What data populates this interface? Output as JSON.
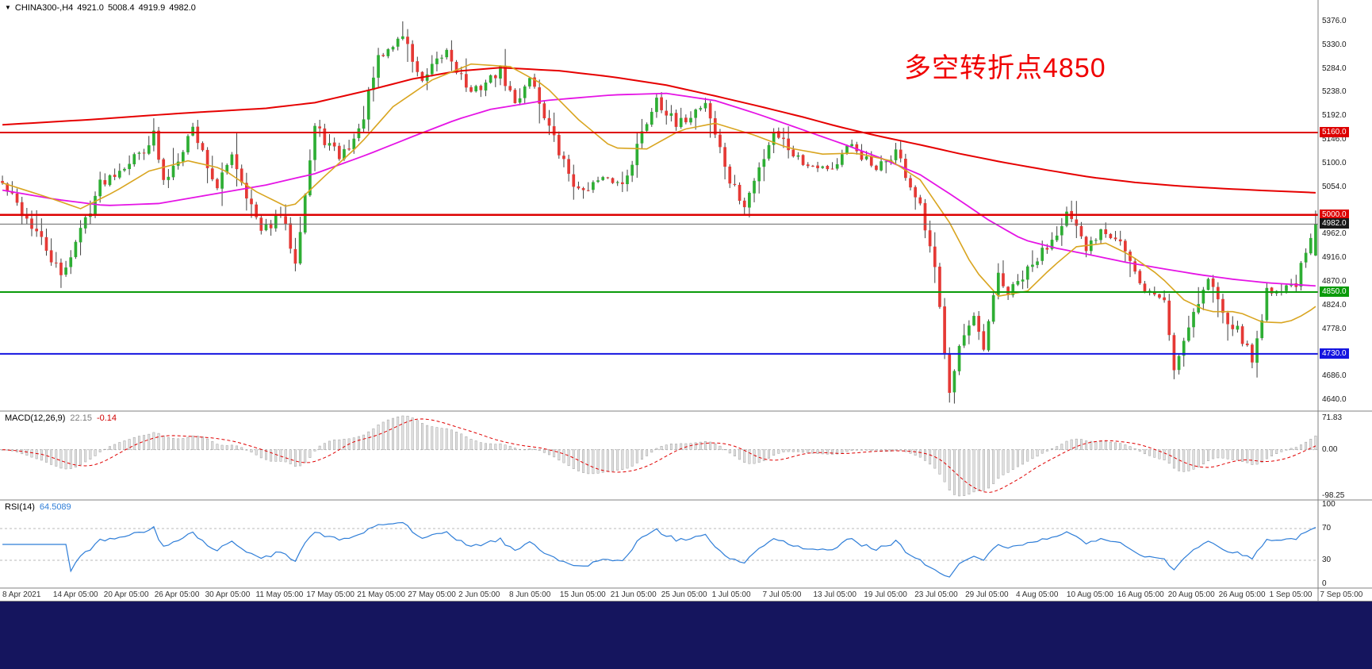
{
  "window": {
    "background": "#ffffff",
    "taskbar_color": "#15155e"
  },
  "header": {
    "symbol_period": "CHINA300-,H4",
    "open": "4921.0",
    "high": "5008.4",
    "low": "4919.9",
    "close": "4982.0"
  },
  "annotation": {
    "text": "多空转折点4850",
    "color": "#f00000"
  },
  "price_axis": {
    "top_price": 5402,
    "bottom_price": 4628,
    "labels": [
      "5376.0",
      "5330.0",
      "5284.0",
      "5238.0",
      "5192.0",
      "5146.0",
      "5100.0",
      "5054.0",
      "4962.0",
      "4916.0",
      "4870.0",
      "4824.0",
      "4778.0",
      "4686.0",
      "4640.0"
    ],
    "values": [
      5376,
      5330,
      5284,
      5238,
      5192,
      5146,
      5100,
      5054,
      4962,
      4916,
      4870,
      4824,
      4778,
      4686,
      4640
    ]
  },
  "levels": [
    {
      "label": "5160.0",
      "value": 5160,
      "color": "#dd0000",
      "width": 2
    },
    {
      "label": "5000.0",
      "value": 5000,
      "color": "#dd0000",
      "width": 2.5
    },
    {
      "label": "4850.0",
      "value": 4850,
      "color": "#0a9b0a",
      "width": 2
    },
    {
      "label": "4730.0",
      "value": 4730,
      "color": "#1515e0",
      "width": 2
    }
  ],
  "current_price": {
    "label": "4982.0",
    "value": 4982,
    "badge_bg": "#1a1a1a",
    "line_color": "#666666"
  },
  "chart_data": {
    "type": "candlestick",
    "symbol": "CHINA300-",
    "timeframe": "H4",
    "n_candles": 270,
    "seed": 42,
    "up_color": "#2eae34",
    "down_color": "#e53935",
    "wick_color": "#404040",
    "close_path": [
      [
        0,
        5060
      ],
      [
        7,
        4965
      ],
      [
        12,
        4880
      ],
      [
        20,
        5060
      ],
      [
        28,
        5120
      ],
      [
        31,
        5155
      ],
      [
        33,
        5060
      ],
      [
        39,
        5170
      ],
      [
        44,
        5050
      ],
      [
        47,
        5120
      ],
      [
        53,
        4965
      ],
      [
        57,
        5000
      ],
      [
        60,
        4915
      ],
      [
        64,
        5170
      ],
      [
        69,
        5110
      ],
      [
        73,
        5160
      ],
      [
        77,
        5300
      ],
      [
        82,
        5350
      ],
      [
        86,
        5255
      ],
      [
        91,
        5320
      ],
      [
        96,
        5235
      ],
      [
        102,
        5280
      ],
      [
        105,
        5215
      ],
      [
        108,
        5270
      ],
      [
        114,
        5120
      ],
      [
        118,
        5045
      ],
      [
        123,
        5070
      ],
      [
        127,
        5060
      ],
      [
        134,
        5230
      ],
      [
        138,
        5170
      ],
      [
        144,
        5220
      ],
      [
        149,
        5065
      ],
      [
        152,
        5015
      ],
      [
        158,
        5165
      ],
      [
        164,
        5100
      ],
      [
        170,
        5090
      ],
      [
        174,
        5135
      ],
      [
        179,
        5085
      ],
      [
        183,
        5125
      ],
      [
        188,
        5010
      ],
      [
        191,
        4890
      ],
      [
        194,
        4665
      ],
      [
        196,
        4745
      ],
      [
        199,
        4795
      ],
      [
        201,
        4735
      ],
      [
        204,
        4885
      ],
      [
        206,
        4845
      ],
      [
        211,
        4900
      ],
      [
        215,
        4955
      ],
      [
        218,
        5005
      ],
      [
        222,
        4930
      ],
      [
        225,
        4975
      ],
      [
        229,
        4950
      ],
      [
        233,
        4860
      ],
      [
        238,
        4835
      ],
      [
        240,
        4700
      ],
      [
        243,
        4790
      ],
      [
        247,
        4875
      ],
      [
        251,
        4800
      ],
      [
        254,
        4760
      ],
      [
        256,
        4715
      ],
      [
        259,
        4850
      ],
      [
        262,
        4855
      ],
      [
        265,
        4870
      ],
      [
        267,
        4920
      ],
      [
        269,
        4982
      ]
    ],
    "spikes": [
      {
        "i": 12,
        "low": 4858
      },
      {
        "i": 82,
        "high": 5376
      },
      {
        "i": 194,
        "low": 4655
      },
      {
        "i": 218,
        "high": 5016
      },
      {
        "i": 240,
        "low": 4686
      },
      {
        "i": 256,
        "low": 4702
      }
    ],
    "last_candle": {
      "open": 4921.0,
      "high": 5008.4,
      "low": 4919.9,
      "close": 4982.0
    },
    "ma_lines": [
      {
        "name": "ma-long-red",
        "color": "#e60000",
        "width": 2,
        "points": [
          [
            0,
            5175
          ],
          [
            18,
            5185
          ],
          [
            36,
            5197
          ],
          [
            54,
            5207
          ],
          [
            64,
            5218
          ],
          [
            75,
            5242
          ],
          [
            84,
            5264
          ],
          [
            93,
            5279
          ],
          [
            102,
            5286
          ],
          [
            114,
            5280
          ],
          [
            125,
            5268
          ],
          [
            136,
            5252
          ],
          [
            146,
            5231
          ],
          [
            155,
            5211
          ],
          [
            164,
            5190
          ],
          [
            171,
            5172
          ],
          [
            179,
            5154
          ],
          [
            188,
            5136
          ],
          [
            196,
            5119
          ],
          [
            205,
            5102
          ],
          [
            214,
            5087
          ],
          [
            223,
            5073
          ],
          [
            232,
            5063
          ],
          [
            241,
            5056
          ],
          [
            250,
            5051
          ],
          [
            259,
            5047
          ],
          [
            269,
            5043
          ]
        ]
      },
      {
        "name": "ma-mid-magenta",
        "color": "#e514e5",
        "width": 1.8,
        "points": [
          [
            0,
            5048
          ],
          [
            11,
            5030
          ],
          [
            21,
            5018
          ],
          [
            32,
            5022
          ],
          [
            43,
            5040
          ],
          [
            54,
            5058
          ],
          [
            64,
            5080
          ],
          [
            75,
            5118
          ],
          [
            84,
            5152
          ],
          [
            93,
            5185
          ],
          [
            100,
            5205
          ],
          [
            111,
            5222
          ],
          [
            125,
            5233
          ],
          [
            136,
            5236
          ],
          [
            146,
            5222
          ],
          [
            155,
            5195
          ],
          [
            164,
            5165
          ],
          [
            173,
            5135
          ],
          [
            180,
            5110
          ],
          [
            188,
            5078
          ],
          [
            195,
            5035
          ],
          [
            202,
            4990
          ],
          [
            209,
            4952
          ],
          [
            216,
            4935
          ],
          [
            223,
            4922
          ],
          [
            230,
            4908
          ],
          [
            238,
            4895
          ],
          [
            245,
            4884
          ],
          [
            252,
            4875
          ],
          [
            259,
            4868
          ],
          [
            269,
            4862
          ]
        ]
      },
      {
        "name": "ma-fast-orange",
        "color": "#d9a520",
        "width": 1.6,
        "points": [
          [
            0,
            5062
          ],
          [
            9,
            5035
          ],
          [
            16,
            5012
          ],
          [
            23,
            5045
          ],
          [
            30,
            5085
          ],
          [
            38,
            5105
          ],
          [
            45,
            5090
          ],
          [
            52,
            5045
          ],
          [
            59,
            5012
          ],
          [
            66,
            5075
          ],
          [
            73,
            5135
          ],
          [
            80,
            5210
          ],
          [
            88,
            5262
          ],
          [
            96,
            5293
          ],
          [
            104,
            5288
          ],
          [
            111,
            5252
          ],
          [
            118,
            5185
          ],
          [
            125,
            5130
          ],
          [
            132,
            5128
          ],
          [
            139,
            5165
          ],
          [
            146,
            5178
          ],
          [
            154,
            5155
          ],
          [
            161,
            5130
          ],
          [
            168,
            5118
          ],
          [
            175,
            5120
          ],
          [
            182,
            5105
          ],
          [
            188,
            5068
          ],
          [
            194,
            4985
          ],
          [
            199,
            4895
          ],
          [
            204,
            4842
          ],
          [
            210,
            4852
          ],
          [
            215,
            4898
          ],
          [
            220,
            4938
          ],
          [
            226,
            4945
          ],
          [
            231,
            4922
          ],
          [
            237,
            4882
          ],
          [
            242,
            4835
          ],
          [
            247,
            4812
          ],
          [
            253,
            4812
          ],
          [
            258,
            4792
          ],
          [
            263,
            4790
          ],
          [
            267,
            4808
          ],
          [
            269,
            4822
          ]
        ]
      }
    ],
    "date_labels": [
      "8 Apr 2021",
      "14 Apr 05:00",
      "20 Apr 05:00",
      "26 Apr 05:00",
      "30 Apr 05:00",
      "11 May 05:00",
      "17 May 05:00",
      "21 May 05:00",
      "27 May 05:00",
      "2 Jun 05:00",
      "8 Jun 05:00",
      "15 Jun 05:00",
      "21 Jun 05:00",
      "25 Jun 05:00",
      "1 Jul 05:00",
      "7 Jul 05:00",
      "13 Jul 05:00",
      "19 Jul 05:00",
      "23 Jul 05:00",
      "29 Jul 05:00",
      "4 Aug 05:00",
      "10 Aug 05:00",
      "16 Aug 05:00",
      "20 Aug 05:00",
      "26 Aug 05:00",
      "1 Sep 05:00",
      "7 Sep 05:00"
    ]
  },
  "macd": {
    "title": "MACD(12,26,9)",
    "value_main": "22.15",
    "value_signal": "-0.14",
    "fast": 12,
    "slow": 26,
    "signal": 9,
    "axis": {
      "max": 71.83,
      "min": -98.25
    },
    "axis_labels": [
      "71.83",
      "0.00",
      "-98.25"
    ],
    "axis_values": [
      71.83,
      0,
      -98.25
    ],
    "histogram_color": "#e3e3e3",
    "histogram_stroke": "#9c9c9c",
    "signal_color": "#e00000"
  },
  "rsi": {
    "title": "RSI(14)",
    "value": "64.5089",
    "period": 14,
    "levels": [
      70,
      30
    ],
    "axis_labels": [
      "100",
      "70",
      "30",
      "0"
    ],
    "axis_values": [
      100,
      70,
      30,
      0
    ],
    "line_color": "#2f7ed8"
  }
}
